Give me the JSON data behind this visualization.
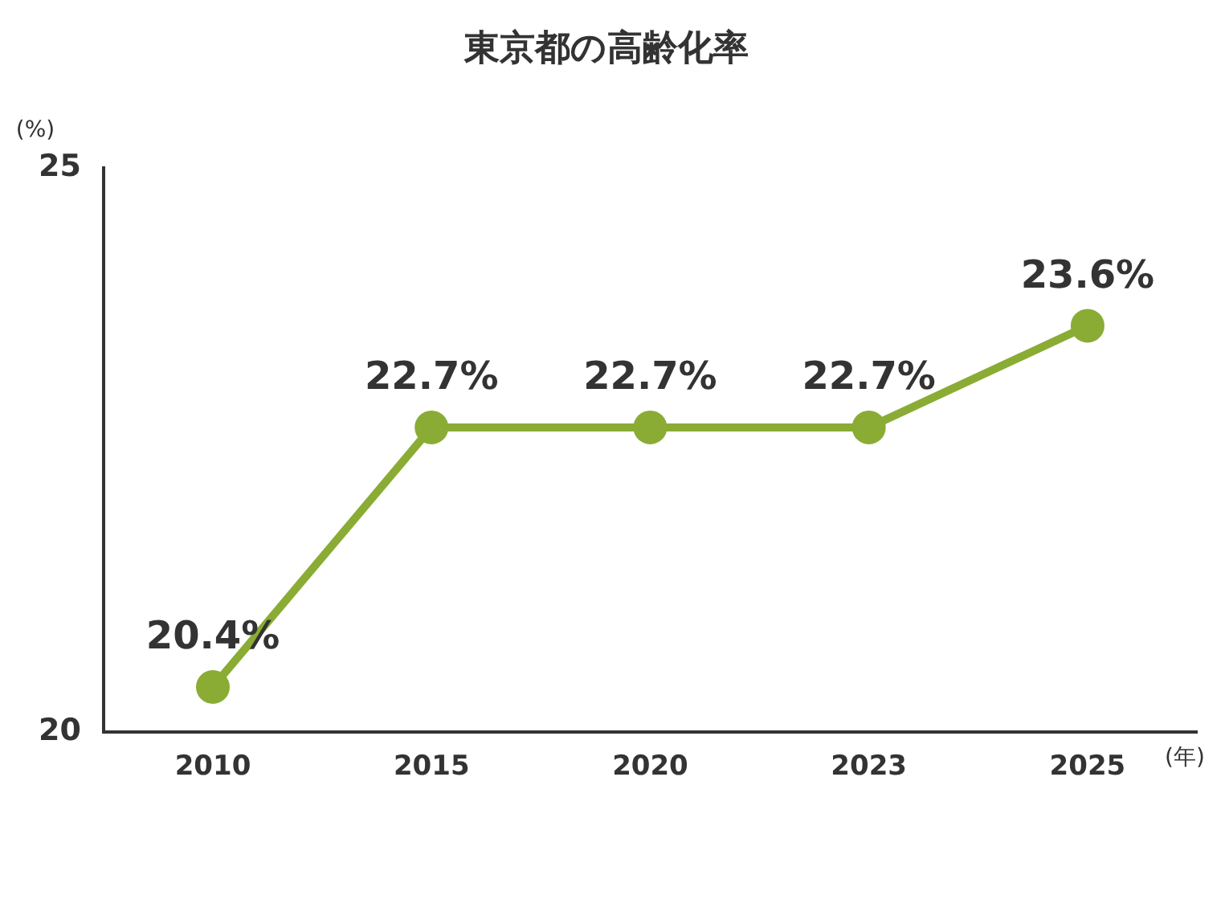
{
  "chart_data": {
    "type": "line",
    "title": "東京都の高齢化率",
    "ylabel": "(%)",
    "xlabel": "(年)",
    "categories": [
      "2010",
      "2015",
      "2020",
      "2023",
      "2025"
    ],
    "series": [
      {
        "color": "#8aac34",
        "values": [
          20.4,
          22.7,
          22.7,
          22.7,
          23.6
        ],
        "value_labels": [
          "20.4%",
          "22.7%",
          "22.7%",
          "22.7%",
          "23.6%"
        ]
      }
    ],
    "ylim": [
      20,
      25
    ],
    "yticks": [
      20,
      25
    ],
    "grid": false,
    "legend": false,
    "marker": "circle",
    "line_style": "solid"
  }
}
